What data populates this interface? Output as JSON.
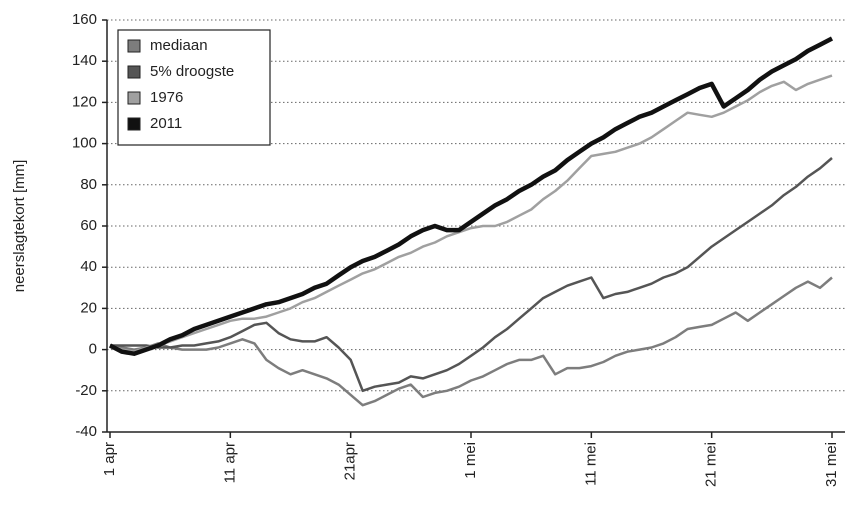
{
  "chart_data": {
    "type": "line",
    "y_label": "neerslagtekort [mm]",
    "categories": [
      "1 apr",
      null,
      null,
      null,
      null,
      null,
      null,
      null,
      null,
      null,
      "11 apr",
      null,
      null,
      null,
      null,
      null,
      null,
      null,
      null,
      null,
      "21apr",
      null,
      null,
      null,
      null,
      null,
      null,
      null,
      null,
      null,
      "1 mei",
      null,
      null,
      null,
      null,
      null,
      null,
      null,
      null,
      null,
      "11 mei",
      null,
      null,
      null,
      null,
      null,
      null,
      null,
      null,
      null,
      "21 mei",
      null,
      null,
      null,
      null,
      null,
      null,
      null,
      null,
      null,
      "31 mei"
    ],
    "series": [
      {
        "name": "mediaan",
        "color": "#7d7d7d",
        "linewidth": 2.5,
        "values": [
          2,
          1,
          0,
          1,
          3,
          1,
          0,
          0,
          0,
          1,
          3,
          5,
          3,
          -5,
          -9,
          -12,
          -10,
          -12,
          -14,
          -17,
          -22,
          -27,
          -25,
          -22,
          -19,
          -17,
          -23,
          -21,
          -20,
          -18,
          -15,
          -13,
          -10,
          -7,
          -5,
          -5,
          -3,
          -12,
          -9,
          -9,
          -8,
          -6,
          -3,
          -1,
          0,
          1,
          3,
          6,
          10,
          11,
          12,
          15,
          18,
          14,
          18,
          22,
          26,
          30,
          33,
          30,
          35
        ]
      },
      {
        "name": "5% droogste",
        "color": "#555555",
        "linewidth": 2.5,
        "values": [
          2,
          2,
          2,
          2,
          1,
          1,
          2,
          2,
          3,
          4,
          6,
          9,
          12,
          13,
          8,
          5,
          4,
          4,
          6,
          1,
          -5,
          -20,
          -18,
          -17,
          -16,
          -13,
          -14,
          -12,
          -10,
          -7,
          -3,
          1,
          6,
          10,
          15,
          20,
          25,
          28,
          31,
          33,
          35,
          25,
          27,
          28,
          30,
          32,
          35,
          37,
          40,
          45,
          50,
          54,
          58,
          62,
          66,
          70,
          75,
          79,
          84,
          88,
          93
        ]
      },
      {
        "name": "1976",
        "color": "#a0a0a0",
        "linewidth": 2.5,
        "values": [
          2,
          0,
          -1,
          1,
          2,
          4,
          6,
          8,
          10,
          12,
          14,
          15,
          15,
          16,
          18,
          20,
          23,
          25,
          28,
          31,
          34,
          37,
          39,
          42,
          45,
          47,
          50,
          52,
          55,
          57,
          59,
          60,
          60,
          62,
          65,
          68,
          73,
          77,
          82,
          88,
          94,
          95,
          96,
          98,
          100,
          103,
          107,
          111,
          115,
          114,
          113,
          115,
          118,
          121,
          125,
          128,
          130,
          126,
          129,
          131,
          133
        ]
      },
      {
        "name": "2011",
        "color": "#111111",
        "linewidth": 4.5,
        "values": [
          2,
          -1,
          -2,
          0,
          2,
          5,
          7,
          10,
          12,
          14,
          16,
          18,
          20,
          22,
          23,
          25,
          27,
          30,
          32,
          36,
          40,
          43,
          45,
          48,
          51,
          55,
          58,
          60,
          58,
          58,
          62,
          66,
          70,
          73,
          77,
          80,
          84,
          87,
          92,
          96,
          100,
          103,
          107,
          110,
          113,
          115,
          118,
          121,
          124,
          127,
          129,
          118,
          122,
          126,
          131,
          135,
          138,
          141,
          145,
          148,
          151
        ]
      }
    ],
    "ylim": [
      -40,
      160
    ],
    "yticks": [
      -40,
      -20,
      0,
      20,
      40,
      60,
      80,
      100,
      120,
      140,
      160
    ],
    "grid": true,
    "legend": "top-left"
  }
}
